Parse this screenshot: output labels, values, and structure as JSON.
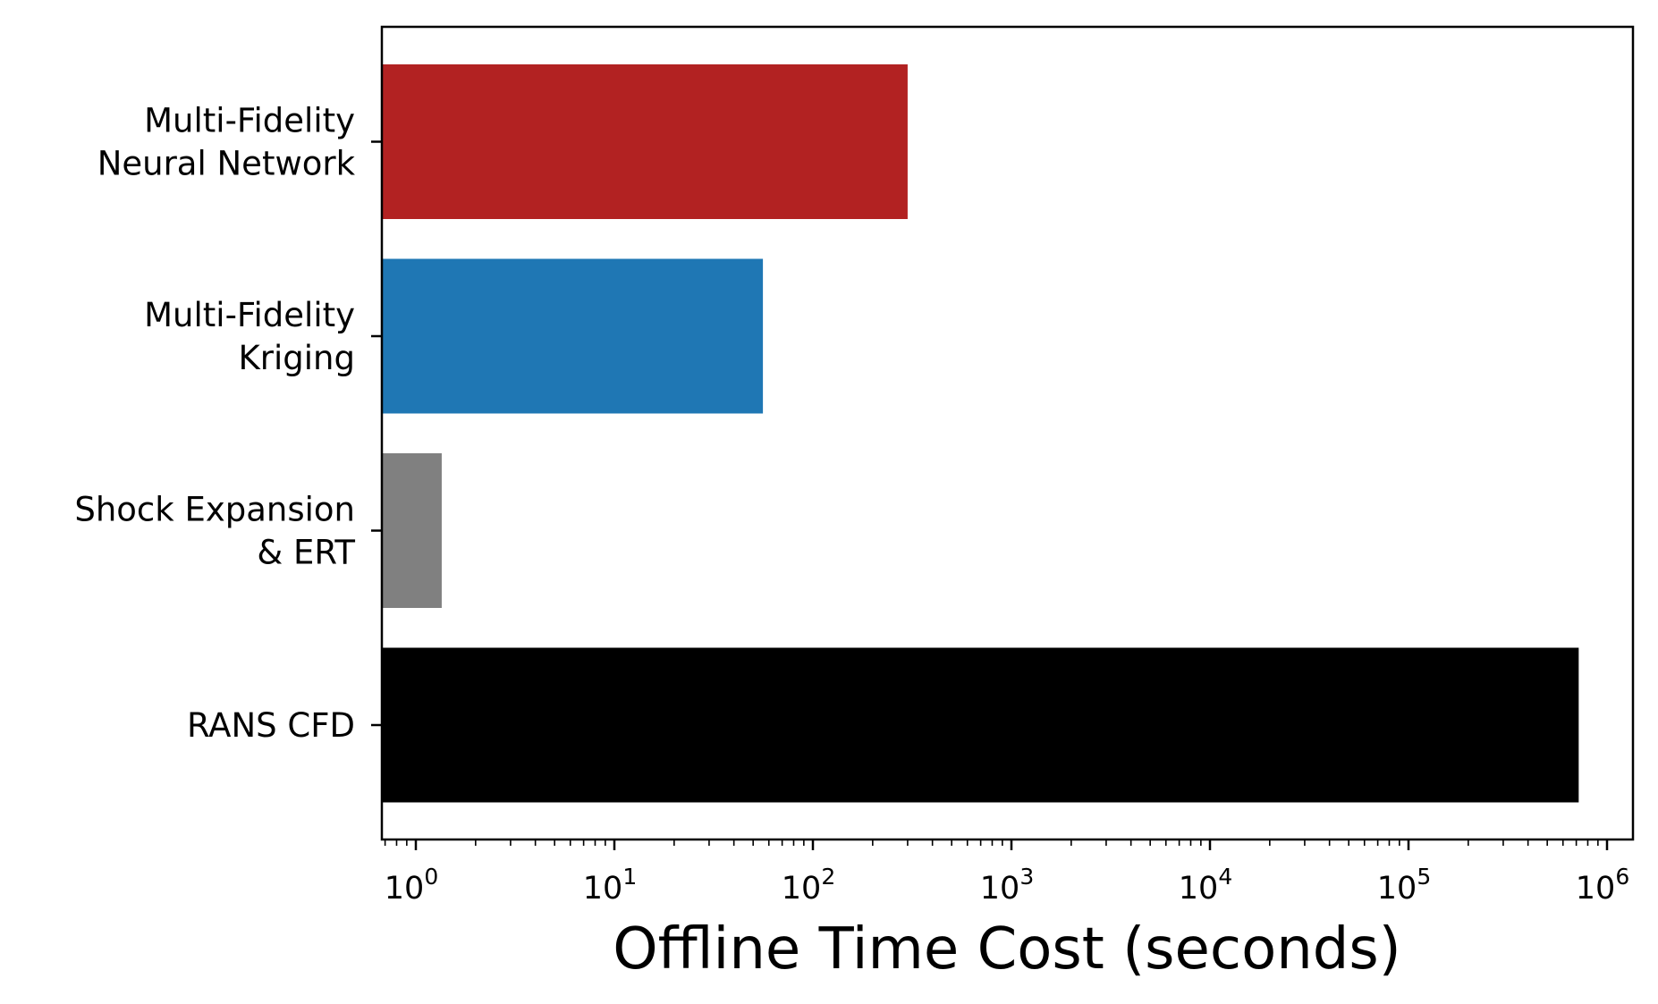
{
  "chart_data": {
    "type": "bar",
    "orientation": "horizontal",
    "xscale": "log",
    "xlabel": "Offline Time Cost (seconds)",
    "ylabel": "",
    "title": "",
    "xlim": [
      0.68,
      1500000
    ],
    "xticks": [
      {
        "base": "10",
        "exp": "0",
        "value": 1
      },
      {
        "base": "10",
        "exp": "1",
        "value": 10
      },
      {
        "base": "10",
        "exp": "2",
        "value": 100
      },
      {
        "base": "10",
        "exp": "3",
        "value": 1000
      },
      {
        "base": "10",
        "exp": "4",
        "value": 10000
      },
      {
        "base": "10",
        "exp": "5",
        "value": 100000
      },
      {
        "base": "10",
        "exp": "6",
        "value": 1000000
      }
    ],
    "grid": false,
    "bars": [
      {
        "label_lines": [
          "Multi-Fidelity",
          "Neural Network"
        ],
        "value": 300,
        "color": "#b22222"
      },
      {
        "label_lines": [
          "Multi-Fidelity",
          "Kriging"
        ],
        "value": 56,
        "color": "#1f77b4"
      },
      {
        "label_lines": [
          "Shock Expansion",
          "& ERT"
        ],
        "value": 1.35,
        "color": "#808080"
      },
      {
        "label_lines": [
          "RANS CFD"
        ],
        "value": 720000,
        "color": "#000000"
      }
    ]
  }
}
